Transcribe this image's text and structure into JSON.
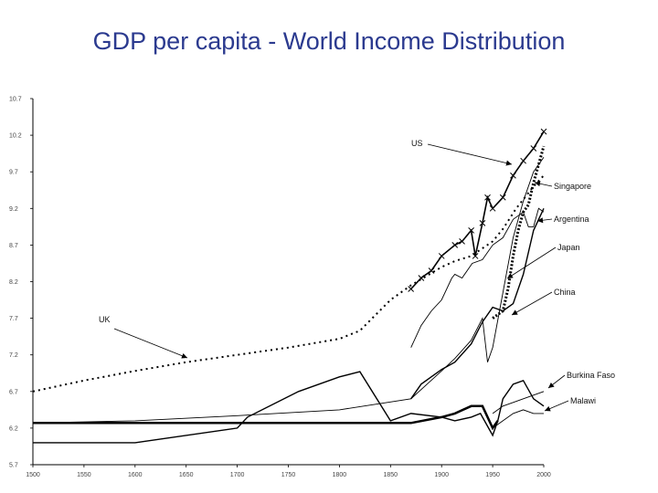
{
  "title": "GDP per capita - World Income Distribution",
  "chart_data": {
    "type": "line",
    "title": "GDP per capita - World Income Distribution",
    "xlabel": "",
    "ylabel": "",
    "xlim": [
      1500,
      2000
    ],
    "ylim": [
      5.7,
      10.7
    ],
    "x_ticks": [
      "1500",
      "1550",
      "1600",
      "1650",
      "1700",
      "1750",
      "1800",
      "1850",
      "1900",
      "1950",
      "2000"
    ],
    "y_ticks": [
      "10.7",
      "10.2",
      "9.7",
      "9.2",
      "8.7",
      "8.2",
      "7.7",
      "7.2",
      "6.7",
      "6.2",
      "5.7"
    ],
    "grid": false,
    "legend": "none (direct labels with arrows)",
    "series": [
      {
        "name": "UK",
        "style": "dotted",
        "color": "#000000",
        "x": [
          1500,
          1550,
          1600,
          1650,
          1700,
          1750,
          1800,
          1820,
          1850,
          1870,
          1900,
          1913,
          1929,
          1950,
          1960,
          1973,
          1990,
          2000
        ],
        "y": [
          6.7,
          6.85,
          6.98,
          7.1,
          7.2,
          7.3,
          7.42,
          7.53,
          7.95,
          8.15,
          8.4,
          8.48,
          8.55,
          8.75,
          8.92,
          9.2,
          9.5,
          9.65
        ]
      },
      {
        "name": "US",
        "style": "cross-marked",
        "color": "#000000",
        "x": [
          1870,
          1880,
          1890,
          1900,
          1913,
          1920,
          1929,
          1933,
          1940,
          1945,
          1950,
          1960,
          1970,
          1980,
          1990,
          2000
        ],
        "y": [
          8.1,
          8.25,
          8.35,
          8.55,
          8.7,
          8.75,
          8.9,
          8.55,
          9.0,
          9.35,
          9.2,
          9.35,
          9.65,
          9.85,
          10.02,
          10.25
        ]
      },
      {
        "name": "Japan",
        "style": "thin",
        "color": "#000000",
        "x": [
          1500,
          1600,
          1700,
          1800,
          1870,
          1900,
          1913,
          1929,
          1940,
          1945,
          1950,
          1960,
          1970,
          1980,
          1990,
          2000
        ],
        "y": [
          6.27,
          6.3,
          6.37,
          6.45,
          6.6,
          6.98,
          7.15,
          7.4,
          7.7,
          7.1,
          7.3,
          8.05,
          8.8,
          9.3,
          9.7,
          9.9
        ]
      },
      {
        "name": "Singapore",
        "style": "bold-dotted",
        "color": "#000000",
        "x": [
          1950,
          1960,
          1965,
          1970,
          1975,
          1980,
          1985,
          1990,
          1995,
          2000
        ],
        "y": [
          7.7,
          7.8,
          8.1,
          8.55,
          8.9,
          9.15,
          9.25,
          9.55,
          9.8,
          10.05
        ]
      },
      {
        "name": "Argentina",
        "style": "thin",
        "color": "#000000",
        "x": [
          1870,
          1880,
          1890,
          1900,
          1910,
          1913,
          1920,
          1930,
          1940,
          1950,
          1960,
          1970,
          1980,
          1985,
          1990,
          1995,
          2000
        ],
        "y": [
          7.3,
          7.6,
          7.8,
          7.95,
          8.25,
          8.3,
          8.25,
          8.45,
          8.5,
          8.7,
          8.8,
          9.05,
          9.15,
          8.95,
          8.95,
          9.2,
          9.15
        ]
      },
      {
        "name": "China",
        "style": "bold",
        "color": "#000000",
        "x": [
          1500,
          1600,
          1700,
          1800,
          1820,
          1870,
          1900,
          1913,
          1929,
          1940,
          1950,
          1955
        ],
        "y": [
          6.27,
          6.27,
          6.27,
          6.27,
          6.27,
          6.27,
          6.35,
          6.4,
          6.5,
          6.5,
          6.2,
          6.3
        ]
      },
      {
        "name": "Burkina Faso",
        "style": "thin",
        "color": "#000000",
        "x": [
          1950,
          1960,
          1970,
          1980,
          1990,
          2000
        ],
        "y": [
          6.4,
          6.5,
          6.55,
          6.6,
          6.65,
          6.7
        ]
      },
      {
        "name": "Malawi",
        "style": "thin",
        "color": "#000000",
        "x": [
          1950,
          1960,
          1970,
          1980,
          1990,
          2000
        ],
        "y": [
          6.2,
          6.3,
          6.4,
          6.45,
          6.4,
          6.4
        ]
      },
      {
        "name": "",
        "style": "thick",
        "color": "#000000",
        "x": [
          1500,
          1600,
          1700,
          1710,
          1760,
          1800,
          1820,
          1850,
          1870,
          1900,
          1913,
          1929,
          1938,
          1950,
          1955,
          1960,
          1970,
          1980,
          1990,
          2000
        ],
        "y": [
          6.0,
          6.0,
          6.2,
          6.35,
          6.7,
          6.9,
          6.97,
          6.3,
          6.4,
          6.35,
          6.3,
          6.35,
          6.4,
          6.1,
          6.3,
          6.6,
          6.8,
          6.85,
          6.6,
          6.5
        ]
      },
      {
        "name": "",
        "style": "thick",
        "color": "#000000",
        "x": [
          1870,
          1880,
          1900,
          1913,
          1929,
          1940,
          1950,
          1960,
          1970,
          1980,
          1990,
          2000
        ],
        "y": [
          6.6,
          6.8,
          7.0,
          7.1,
          7.35,
          7.65,
          7.85,
          7.8,
          7.9,
          8.3,
          8.9,
          9.2
        ]
      }
    ],
    "annotations": [
      {
        "label": "US",
        "text": "US"
      },
      {
        "label": "Singapore",
        "text": "Singapore"
      },
      {
        "label": "Argentina",
        "text": "Argentina"
      },
      {
        "label": "Japan",
        "text": "Japan"
      },
      {
        "label": "China",
        "text": "China"
      },
      {
        "label": "UK",
        "text": "UK"
      },
      {
        "label": "Burkina Faso",
        "text": "Burkina Faso"
      },
      {
        "label": "Malawi",
        "text": "Malawi"
      }
    ]
  }
}
